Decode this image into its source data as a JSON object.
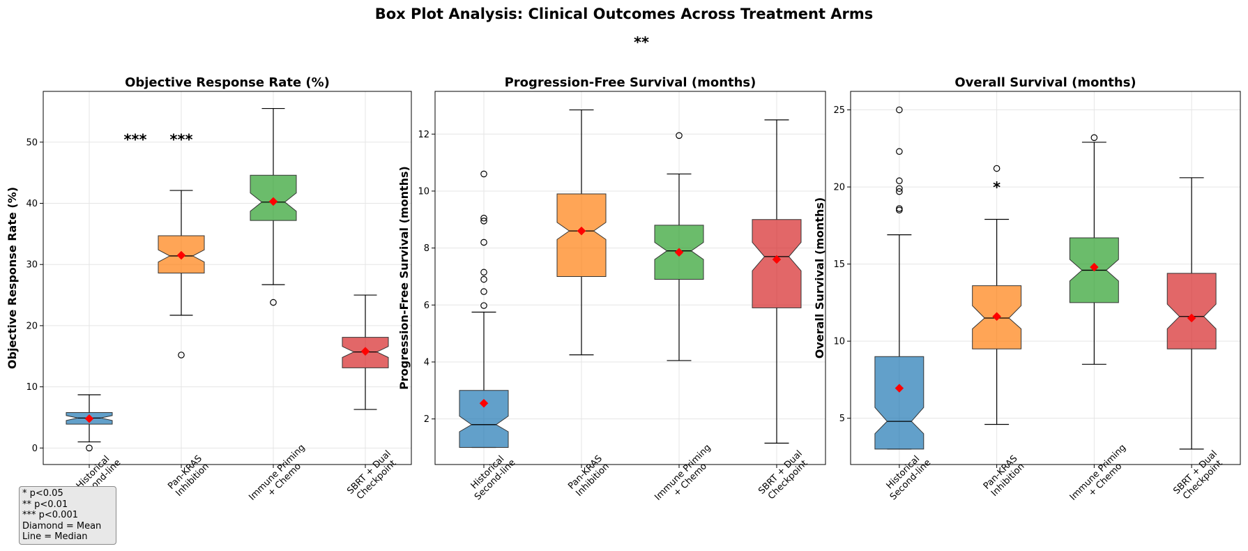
{
  "figure": {
    "title": "Box Plot Analysis: Clinical Outcomes Across Treatment Arms",
    "subtitle": "**"
  },
  "legend_note": {
    "lines": [
      "* p<0.05",
      "** p<0.01",
      "*** p<0.001",
      "Diamond = Mean",
      "Line = Median"
    ]
  },
  "colors": {
    "Historical Second-line": "#1f77b4",
    "Pan-KRAS Inhibition": "#ff7f0e",
    "Immune Priming + Chemo": "#2ca02c",
    "SBRT + Dual Checkpoint": "#d62728",
    "mean_marker": "#ff0000"
  },
  "chart_data": [
    {
      "type": "box",
      "title": "Objective Response Rate (%)",
      "ylabel": "Objective Response Rate (%)",
      "ylim": [
        -2.7,
        58.3
      ],
      "yticks": [
        0,
        10,
        20,
        30,
        40,
        50
      ],
      "grid": true,
      "categories": [
        [
          "Historical",
          "Second-line"
        ],
        [
          "Pan-KRAS",
          "Inhibition"
        ],
        [
          "Immune Priming",
          "+ Chemo"
        ],
        [
          "SBRT + Dual",
          "Checkpoint"
        ]
      ],
      "boxes": [
        {
          "q1": 3.9,
          "median": 4.9,
          "q3": 5.8,
          "whisker_low": 1.0,
          "whisker_high": 8.7,
          "mean": 4.8,
          "notch_low": 4.5,
          "notch_high": 5.3,
          "outliers": [
            0.0
          ]
        },
        {
          "q1": 28.6,
          "median": 31.4,
          "q3": 34.7,
          "whisker_low": 21.7,
          "whisker_high": 42.1,
          "mean": 31.5,
          "notch_low": 30.4,
          "notch_high": 32.4,
          "outliers": [
            15.2
          ]
        },
        {
          "q1": 37.2,
          "median": 40.2,
          "q3": 44.6,
          "whisker_low": 26.7,
          "whisker_high": 55.5,
          "mean": 40.3,
          "notch_low": 38.7,
          "notch_high": 41.7,
          "outliers": [
            23.8
          ]
        },
        {
          "q1": 13.1,
          "median": 15.7,
          "q3": 18.1,
          "whisker_low": 6.3,
          "whisker_high": 25.0,
          "mean": 15.8,
          "notch_low": 14.8,
          "notch_high": 16.6,
          "outliers": []
        }
      ],
      "annotations": [
        {
          "text": "***",
          "x": 1.5,
          "y": 50.5
        },
        {
          "text": "***",
          "x": 2.0,
          "y": 50.5
        }
      ]
    },
    {
      "type": "box",
      "title": "Progression-Free Survival (months)",
      "ylabel": "Progression-Free Survival (months)",
      "ylim": [
        0.4,
        13.5
      ],
      "yticks": [
        2,
        4,
        6,
        8,
        10,
        12
      ],
      "grid": true,
      "categories": [
        [
          "Historical",
          "Second-line"
        ],
        [
          "Pan-KRAS",
          "Inhibition"
        ],
        [
          "Immune Priming",
          "+ Chemo"
        ],
        [
          "SBRT + Dual",
          "Checkpoint"
        ]
      ],
      "boxes": [
        {
          "q1": 1.0,
          "median": 1.8,
          "q3": 3.0,
          "whisker_low": 1.0,
          "whisker_high": 5.75,
          "mean": 2.55,
          "notch_low": 1.55,
          "notch_high": 2.1,
          "outliers": [
            5.98,
            6.47,
            6.9,
            7.15,
            8.2,
            8.95,
            9.05,
            10.6
          ]
        },
        {
          "q1": 7.0,
          "median": 8.6,
          "q3": 9.9,
          "whisker_low": 4.25,
          "whisker_high": 12.85,
          "mean": 8.6,
          "notch_low": 8.3,
          "notch_high": 8.9,
          "outliers": []
        },
        {
          "q1": 6.9,
          "median": 7.9,
          "q3": 8.8,
          "whisker_low": 4.05,
          "whisker_high": 10.6,
          "mean": 7.85,
          "notch_low": 7.6,
          "notch_high": 8.2,
          "outliers": [
            11.95
          ]
        },
        {
          "q1": 5.9,
          "median": 7.7,
          "q3": 9.0,
          "whisker_low": 1.15,
          "whisker_high": 12.5,
          "mean": 7.6,
          "notch_low": 7.2,
          "notch_high": 8.2,
          "outliers": []
        }
      ],
      "annotations": []
    },
    {
      "type": "box",
      "title": "Overall Survival (months)",
      "ylabel": "Overall Survival (months)",
      "ylim": [
        2.0,
        26.2
      ],
      "yticks": [
        5,
        10,
        15,
        20,
        25
      ],
      "grid": true,
      "categories": [
        [
          "Historical",
          "Second-line"
        ],
        [
          "Pan-KRAS",
          "Inhibition"
        ],
        [
          "Immune Priming",
          "+ Chemo"
        ],
        [
          "SBRT + Dual",
          "Checkpoint"
        ]
      ],
      "boxes": [
        {
          "q1": 3.0,
          "median": 4.8,
          "q3": 9.0,
          "whisker_low": 3.0,
          "whisker_high": 16.9,
          "mean": 6.95,
          "notch_low": 4.0,
          "notch_high": 5.7,
          "outliers": [
            18.5,
            18.6,
            19.7,
            19.9,
            20.4,
            22.3,
            25.0
          ]
        },
        {
          "q1": 9.5,
          "median": 11.5,
          "q3": 13.6,
          "whisker_low": 4.6,
          "whisker_high": 17.9,
          "mean": 11.6,
          "notch_low": 10.8,
          "notch_high": 12.3,
          "outliers": [
            21.2
          ]
        },
        {
          "q1": 12.5,
          "median": 14.6,
          "q3": 16.7,
          "whisker_low": 8.5,
          "whisker_high": 22.9,
          "mean": 14.8,
          "notch_low": 13.9,
          "notch_high": 15.3,
          "outliers": [
            23.2
          ]
        },
        {
          "q1": 9.5,
          "median": 11.6,
          "q3": 14.4,
          "whisker_low": 3.0,
          "whisker_high": 20.6,
          "mean": 11.5,
          "notch_low": 10.8,
          "notch_high": 12.4,
          "outliers": []
        }
      ],
      "annotations": [
        {
          "text": "*",
          "x": 2.0,
          "y": 20.0
        }
      ]
    }
  ]
}
